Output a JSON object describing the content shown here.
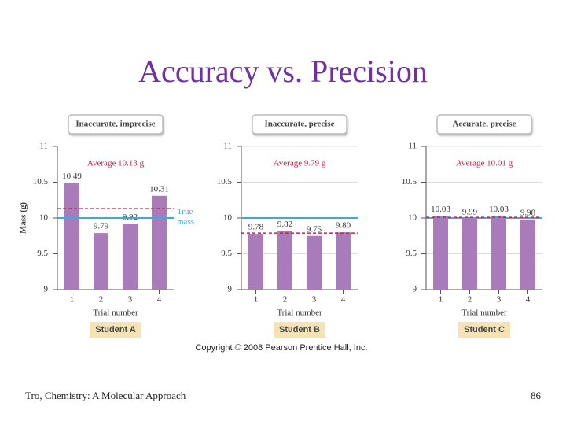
{
  "title": "Accuracy vs. Precision",
  "copyright": "Copyright © 2008 Pearson Prentice Hall, Inc.",
  "footer": "Tro, Chemistry: A Molecular Approach",
  "page_number": "86",
  "chart_data": [
    {
      "type": "bar",
      "title": "Inaccurate, imprecise",
      "student": "Student A",
      "categories": [
        "1",
        "2",
        "3",
        "4"
      ],
      "values": [
        10.49,
        9.79,
        9.92,
        10.31
      ],
      "color": "#a97bbb",
      "ylim": [
        9,
        11
      ],
      "yticks": [
        9,
        9.5,
        10,
        10.5,
        11
      ],
      "grid": false,
      "xlabel": "Trial number",
      "ylabel": "Mass (g)",
      "average": 10.13,
      "average_label": "Average 10.13 g",
      "average_color": "#c0264a",
      "true_mass": 10,
      "true_mass_label": "True mass",
      "true_mass_color": "#3fa9d9"
    },
    {
      "type": "bar",
      "title": "Inaccurate, precise",
      "student": "Student B",
      "categories": [
        "1",
        "2",
        "3",
        "4"
      ],
      "values": [
        9.78,
        9.82,
        9.75,
        9.8
      ],
      "value_labels": [
        "9.78",
        "9.82",
        "9.75",
        "9.80"
      ],
      "color": "#a97bbb",
      "ylim": [
        9,
        11
      ],
      "yticks": [
        9,
        9.5,
        10,
        10.5,
        11
      ],
      "grid": true,
      "xlabel": "Trial number",
      "average": 9.79,
      "average_label": "Average 9.79 g",
      "average_color": "#c0264a",
      "true_mass": 10,
      "true_mass_color": "#3fa9d9"
    },
    {
      "type": "bar",
      "title": "Accurate, precise",
      "student": "Student C",
      "categories": [
        "1",
        "2",
        "3",
        "4"
      ],
      "values": [
        10.03,
        9.99,
        10.03,
        9.98
      ],
      "color": "#a97bbb",
      "ylim": [
        9,
        11
      ],
      "yticks": [
        9,
        9.5,
        10,
        10.5,
        11
      ],
      "grid": true,
      "xlabel": "Trial number",
      "average": 10.01,
      "average_label": "Average 10.01 g",
      "average_color": "#c0264a",
      "true_mass": 10,
      "true_mass_color": "#3fa9d9"
    }
  ]
}
